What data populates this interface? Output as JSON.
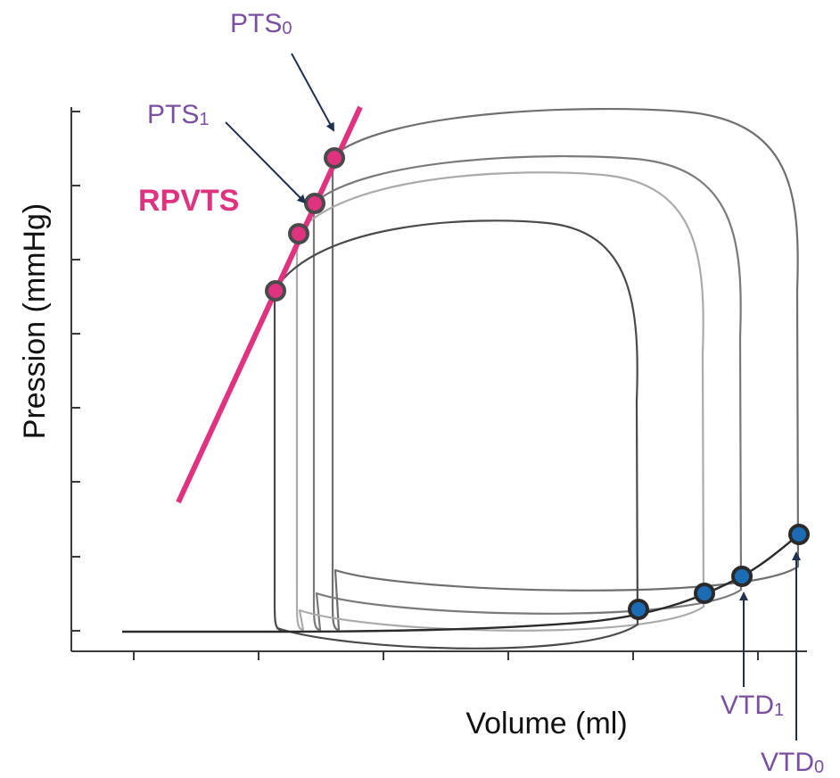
{
  "colors": {
    "espvr": "#e0337f",
    "annotation": "#7b4fa0",
    "arrow": "#1f3050",
    "es_point_fill": "#e0337f",
    "es_point_ring": "#4a4a4a",
    "ed_point_fill": "#1b6cb5",
    "ed_point_ring": "#2a2a2a",
    "loops": [
      "#6f6f6f",
      "#7a7a7a",
      "#ababab",
      "#4a4a4a"
    ]
  },
  "chart_data": {
    "type": "line",
    "xlabel": "Volume (ml)",
    "ylabel": "Pression (mmHg)",
    "x_tick_count": 6,
    "y_tick_count": 8,
    "tick_labels_shown": false,
    "grid": false,
    "line_label": "RPVTS",
    "annotations": [
      {
        "id": "pts0",
        "base": "PTS",
        "sub": "0"
      },
      {
        "id": "pts1",
        "base": "PTS",
        "sub": "1"
      },
      {
        "id": "vtd1",
        "base": "VTD",
        "sub": "1"
      },
      {
        "id": "vtd0",
        "base": "VTD",
        "sub": "0"
      }
    ],
    "series": [
      {
        "color_index": 0,
        "end_systolic": 0,
        "end_diastolic": 3
      },
      {
        "color_index": 1,
        "end_systolic": 1,
        "end_diastolic": 2
      },
      {
        "color_index": 2,
        "end_systolic": 2,
        "end_diastolic": 1
      },
      {
        "color_index": 3,
        "end_systolic": 3,
        "end_diastolic": 0
      }
    ]
  }
}
